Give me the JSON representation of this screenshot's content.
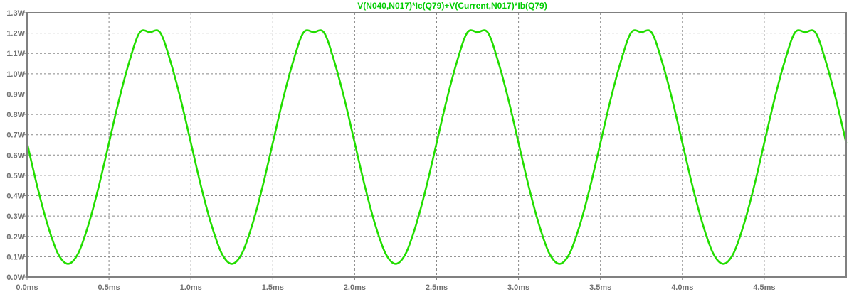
{
  "chart_data": {
    "type": "line",
    "title": "V(N040,N017)*Ic(Q79)+V(Current,N017)*Ib(Q79)",
    "title_color": "#00cc00",
    "xlabel": "",
    "ylabel": "",
    "xlim": [
      0,
      5
    ],
    "ylim": [
      0,
      1.3
    ],
    "grid": true,
    "grid_style": "dashed",
    "x_ticks": [
      {
        "value": 0.0,
        "label": "0.0ms"
      },
      {
        "value": 0.5,
        "label": "0.5ms"
      },
      {
        "value": 1.0,
        "label": "1.0ms"
      },
      {
        "value": 1.5,
        "label": "1.5ms"
      },
      {
        "value": 2.0,
        "label": "2.0ms"
      },
      {
        "value": 2.5,
        "label": "2.5ms"
      },
      {
        "value": 3.0,
        "label": "3.0ms"
      },
      {
        "value": 3.5,
        "label": "3.5ms"
      },
      {
        "value": 4.0,
        "label": "4.0ms"
      },
      {
        "value": 4.5,
        "label": "4.5ms"
      }
    ],
    "y_ticks": [
      {
        "value": 0.0,
        "label": "0.0W"
      },
      {
        "value": 0.1,
        "label": "0.1W"
      },
      {
        "value": 0.2,
        "label": "0.2W"
      },
      {
        "value": 0.3,
        "label": "0.3W"
      },
      {
        "value": 0.4,
        "label": "0.4W"
      },
      {
        "value": 0.5,
        "label": "0.5W"
      },
      {
        "value": 0.6,
        "label": "0.6W"
      },
      {
        "value": 0.7,
        "label": "0.7W"
      },
      {
        "value": 0.8,
        "label": "0.8W"
      },
      {
        "value": 0.9,
        "label": "0.9W"
      },
      {
        "value": 1.0,
        "label": "1.0W"
      },
      {
        "value": 1.1,
        "label": "1.1W"
      },
      {
        "value": 1.2,
        "label": "1.2W"
      },
      {
        "value": 1.3,
        "label": "1.3W"
      }
    ],
    "series": [
      {
        "color": "#22dd00",
        "x": [
          0.0,
          0.0625,
          0.125,
          0.1875,
          0.25,
          0.3125,
          0.375,
          0.4375,
          0.5,
          0.5625,
          0.625,
          0.6875,
          0.75,
          0.8125,
          0.875,
          0.9375,
          1.0,
          1.0625,
          1.125,
          1.1875,
          1.25,
          1.3125,
          1.375,
          1.4375,
          1.5,
          1.5625,
          1.625,
          1.6875,
          1.75,
          1.8125,
          1.875,
          1.9375,
          2.0,
          2.0625,
          2.125,
          2.1875,
          2.25,
          2.3125,
          2.375,
          2.4375,
          2.5,
          2.5625,
          2.625,
          2.6875,
          2.75,
          2.8125,
          2.875,
          2.9375,
          3.0,
          3.0625,
          3.125,
          3.1875,
          3.25,
          3.3125,
          3.375,
          3.4375,
          3.5,
          3.5625,
          3.625,
          3.6875,
          3.75,
          3.8125,
          3.875,
          3.9375,
          4.0,
          4.0625,
          4.125,
          4.1875,
          4.25,
          4.3125,
          4.375,
          4.4375,
          4.5,
          4.5625,
          4.625,
          4.6875,
          4.75,
          4.8125,
          4.875,
          4.9375,
          5.0
        ],
        "y": [
          0.66,
          0.445,
          0.258,
          0.117,
          0.065,
          0.117,
          0.258,
          0.445,
          0.66,
          0.875,
          1.062,
          1.203,
          1.205,
          1.203,
          1.062,
          0.875,
          0.66,
          0.445,
          0.258,
          0.117,
          0.065,
          0.117,
          0.258,
          0.445,
          0.66,
          0.875,
          1.062,
          1.203,
          1.205,
          1.203,
          1.062,
          0.875,
          0.66,
          0.445,
          0.258,
          0.117,
          0.065,
          0.117,
          0.258,
          0.445,
          0.66,
          0.875,
          1.062,
          1.203,
          1.205,
          1.203,
          1.062,
          0.875,
          0.66,
          0.445,
          0.258,
          0.117,
          0.065,
          0.117,
          0.258,
          0.445,
          0.66,
          0.875,
          1.062,
          1.203,
          1.205,
          1.203,
          1.062,
          0.875,
          0.66,
          0.445,
          0.258,
          0.117,
          0.065,
          0.117,
          0.258,
          0.445,
          0.66,
          0.875,
          1.062,
          1.203,
          1.205,
          1.203,
          1.062,
          0.875,
          0.66
        ]
      }
    ]
  },
  "colors": {
    "background": "#ffffff",
    "frame": "#808080",
    "grid": "#888888",
    "tick_label": "#707070"
  }
}
